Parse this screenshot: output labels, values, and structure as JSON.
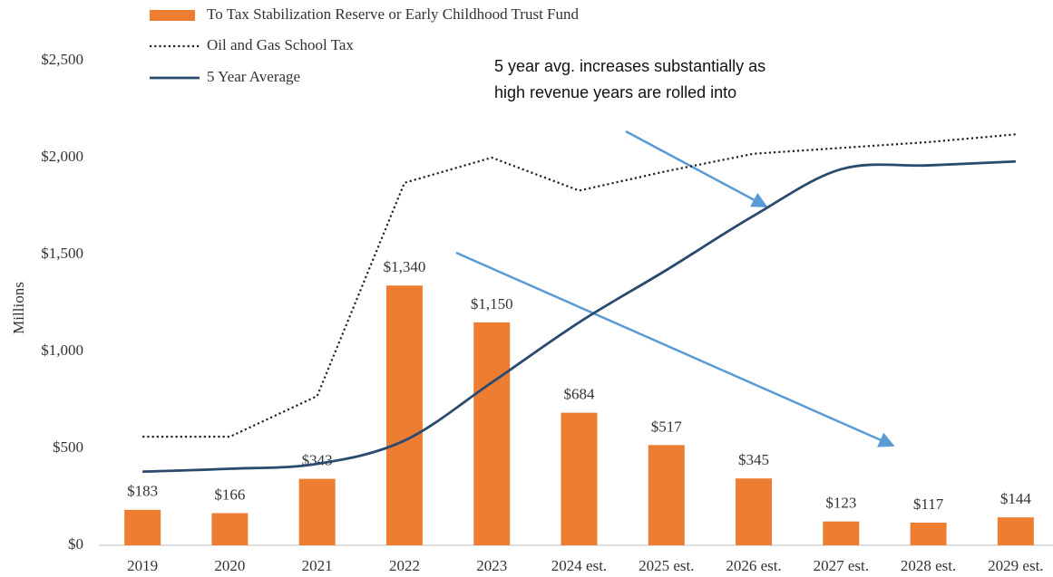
{
  "chart_data": {
    "type": "bar",
    "y_label": "Millions",
    "annotation": [
      "5 year avg. increases substantially as",
      "high revenue years are rolled into"
    ],
    "categories": [
      "2019",
      "2020",
      "2021",
      "2022",
      "2023",
      "2024 est.",
      "2025 est.",
      "2026 est.",
      "2027 est.",
      "2028 est.",
      "2029 est."
    ],
    "series": [
      {
        "name": "To Tax Stabilization Reserve or Early Childhood Trust Fund",
        "type": "bar",
        "color": "#ed7d31",
        "values": [
          183,
          166,
          343,
          1340,
          1150,
          684,
          517,
          345,
          123,
          117,
          144
        ],
        "value_labels": [
          "$183",
          "$166",
          "$343",
          "$1,340",
          "$1,150",
          "$684",
          "$517",
          "$345",
          "$123",
          "$117",
          "$144"
        ]
      },
      {
        "name": "Oil and Gas School Tax",
        "type": "line",
        "style": "dotted",
        "color": "#222222",
        "values": [
          560,
          560,
          770,
          1870,
          2000,
          1830,
          1930,
          2020,
          2050,
          2080,
          2120
        ]
      },
      {
        "name": "5 Year Average",
        "type": "line",
        "style": "smooth",
        "color": "#2b4a6f",
        "values": [
          380,
          395,
          420,
          540,
          840,
          1150,
          1420,
          1700,
          1940,
          1960,
          1980
        ]
      }
    ],
    "ylim": [
      0,
      2500
    ],
    "yticks": [
      {
        "value": 0,
        "label": "$0"
      },
      {
        "value": 500,
        "label": "$500"
      },
      {
        "value": 1000,
        "label": "$1,000"
      },
      {
        "value": 1500,
        "label": "$1,500"
      },
      {
        "value": 2000,
        "label": "$2,000"
      },
      {
        "value": 2500,
        "label": "$2,500"
      }
    ],
    "grid": false,
    "legend": "top-left"
  }
}
